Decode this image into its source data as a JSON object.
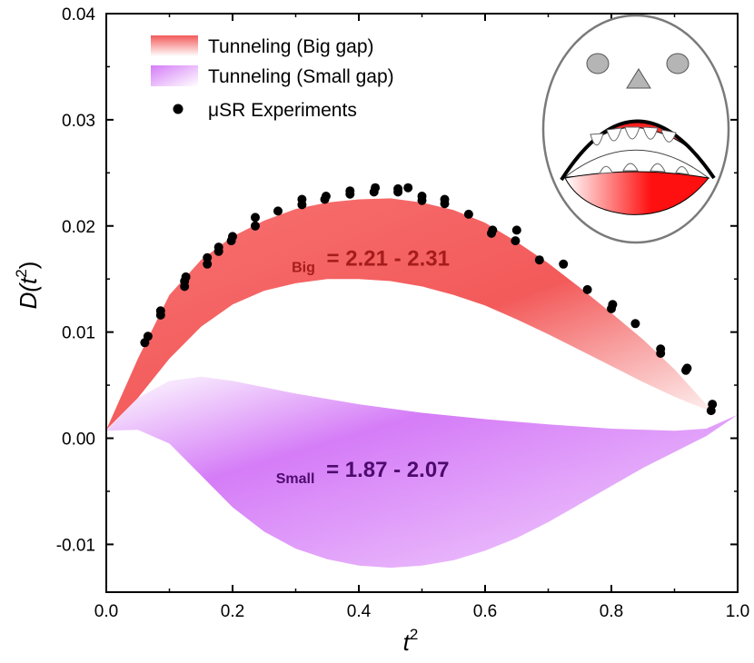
{
  "chart_data": {
    "type": "area",
    "xlabel": "t",
    "xlabel_sup": "2",
    "ylabel": "D(t",
    "ylabel_sup": "2",
    "ylabel_end": ")",
    "xlim": [
      0,
      1
    ],
    "ylim": [
      -0.0145,
      0.04
    ],
    "x_ticks": [
      "0.0",
      "0.2",
      "0.4",
      "0.6",
      "0.8",
      "1.0"
    ],
    "y_ticks": [
      "-0.01",
      "0.00",
      "0.01",
      "0.02",
      "0.03",
      "0.04"
    ],
    "grid": false,
    "legend_position": "top-left",
    "colors": {
      "big_band": "#f35a5a",
      "small_band": "#d57cf7",
      "points": "#000000",
      "big_text": "#a61c1c",
      "small_text": "#4d0a6e"
    },
    "series": [
      {
        "name": "Tunneling (Big gap)",
        "kind": "band",
        "upper": [
          [
            0.0,
            0.0008
          ],
          [
            0.05,
            0.0075
          ],
          [
            0.1,
            0.0135
          ],
          [
            0.15,
            0.0168
          ],
          [
            0.2,
            0.019
          ],
          [
            0.25,
            0.0205
          ],
          [
            0.3,
            0.0216
          ],
          [
            0.35,
            0.0222
          ],
          [
            0.4,
            0.0225
          ],
          [
            0.45,
            0.0226
          ],
          [
            0.5,
            0.0222
          ],
          [
            0.55,
            0.0215
          ],
          [
            0.6,
            0.0203
          ],
          [
            0.65,
            0.0185
          ],
          [
            0.7,
            0.0165
          ],
          [
            0.75,
            0.0142
          ],
          [
            0.8,
            0.0118
          ],
          [
            0.85,
            0.0093
          ],
          [
            0.9,
            0.0065
          ],
          [
            0.95,
            0.0032
          ],
          [
            0.97,
            0.0022
          ]
        ],
        "lower": [
          [
            0.0,
            0.0008
          ],
          [
            0.05,
            0.0038
          ],
          [
            0.1,
            0.0075
          ],
          [
            0.15,
            0.0105
          ],
          [
            0.2,
            0.0126
          ],
          [
            0.25,
            0.0139
          ],
          [
            0.3,
            0.0146
          ],
          [
            0.35,
            0.015
          ],
          [
            0.4,
            0.015
          ],
          [
            0.45,
            0.0148
          ],
          [
            0.5,
            0.0143
          ],
          [
            0.55,
            0.0135
          ],
          [
            0.6,
            0.0125
          ],
          [
            0.65,
            0.0112
          ],
          [
            0.7,
            0.0098
          ],
          [
            0.75,
            0.0083
          ],
          [
            0.8,
            0.0068
          ],
          [
            0.85,
            0.0053
          ],
          [
            0.9,
            0.0039
          ],
          [
            0.95,
            0.0027
          ],
          [
            0.97,
            0.0022
          ]
        ]
      },
      {
        "name": "Tunneling (Small gap)",
        "kind": "band",
        "upper": [
          [
            0.0,
            0.0007
          ],
          [
            0.05,
            0.0038
          ],
          [
            0.1,
            0.0054
          ],
          [
            0.15,
            0.0058
          ],
          [
            0.2,
            0.0054
          ],
          [
            0.3,
            0.0042
          ],
          [
            0.4,
            0.0032
          ],
          [
            0.5,
            0.0024
          ],
          [
            0.6,
            0.0018
          ],
          [
            0.7,
            0.0013
          ],
          [
            0.8,
            0.0009
          ],
          [
            0.9,
            0.0007
          ],
          [
            0.95,
            0.0009
          ],
          [
            1.0,
            0.0022
          ]
        ],
        "lower": [
          [
            0.0,
            0.0007
          ],
          [
            0.05,
            0.0008
          ],
          [
            0.1,
            -0.0005
          ],
          [
            0.15,
            -0.0035
          ],
          [
            0.2,
            -0.0065
          ],
          [
            0.25,
            -0.0088
          ],
          [
            0.3,
            -0.0104
          ],
          [
            0.35,
            -0.0114
          ],
          [
            0.4,
            -0.012
          ],
          [
            0.45,
            -0.0122
          ],
          [
            0.5,
            -0.012
          ],
          [
            0.55,
            -0.0115
          ],
          [
            0.6,
            -0.0106
          ],
          [
            0.65,
            -0.0094
          ],
          [
            0.7,
            -0.0079
          ],
          [
            0.75,
            -0.0062
          ],
          [
            0.8,
            -0.0045
          ],
          [
            0.85,
            -0.0028
          ],
          [
            0.9,
            -0.0013
          ],
          [
            0.95,
            0.0002
          ],
          [
            1.0,
            0.0022
          ]
        ]
      },
      {
        "name": "μSR Experiments",
        "kind": "scatter",
        "points": [
          [
            0.061,
            0.009
          ],
          [
            0.066,
            0.0096
          ],
          [
            0.086,
            0.0116
          ],
          [
            0.086,
            0.012
          ],
          [
            0.124,
            0.0143
          ],
          [
            0.124,
            0.0148
          ],
          [
            0.126,
            0.0152
          ],
          [
            0.16,
            0.0164
          ],
          [
            0.16,
            0.017
          ],
          [
            0.178,
            0.0176
          ],
          [
            0.178,
            0.018
          ],
          [
            0.198,
            0.0186
          ],
          [
            0.2,
            0.019
          ],
          [
            0.236,
            0.02
          ],
          [
            0.236,
            0.0208
          ],
          [
            0.272,
            0.0214
          ],
          [
            0.31,
            0.022
          ],
          [
            0.31,
            0.0225
          ],
          [
            0.346,
            0.0225
          ],
          [
            0.348,
            0.0228
          ],
          [
            0.386,
            0.023
          ],
          [
            0.386,
            0.0233
          ],
          [
            0.424,
            0.0232
          ],
          [
            0.426,
            0.0236
          ],
          [
            0.462,
            0.0232
          ],
          [
            0.462,
            0.0235
          ],
          [
            0.478,
            0.0236
          ],
          [
            0.5,
            0.0224
          ],
          [
            0.5,
            0.0228
          ],
          [
            0.536,
            0.0221
          ],
          [
            0.536,
            0.0225
          ],
          [
            0.574,
            0.0211
          ],
          [
            0.61,
            0.0193
          ],
          [
            0.612,
            0.0196
          ],
          [
            0.648,
            0.0186
          ],
          [
            0.65,
            0.0196
          ],
          [
            0.686,
            0.0168
          ],
          [
            0.724,
            0.0164
          ],
          [
            0.762,
            0.014
          ],
          [
            0.8,
            0.0122
          ],
          [
            0.802,
            0.0126
          ],
          [
            0.838,
            0.0108
          ],
          [
            0.878,
            0.008
          ],
          [
            0.878,
            0.0084
          ],
          [
            0.918,
            0.0064
          ],
          [
            0.92,
            0.0066
          ],
          [
            0.958,
            0.0026
          ],
          [
            0.96,
            0.0032
          ]
        ]
      }
    ],
    "annotations": [
      {
        "label": "Big",
        "text": "= 2.21 - 2.31",
        "x": 0.38,
        "y": 0.0172,
        "color": "#a61c1c"
      },
      {
        "label": "Small",
        "text": "= 1.87 - 2.07",
        "x": 0.355,
        "y": -0.0027,
        "color": "#4d0a6e"
      }
    ]
  }
}
